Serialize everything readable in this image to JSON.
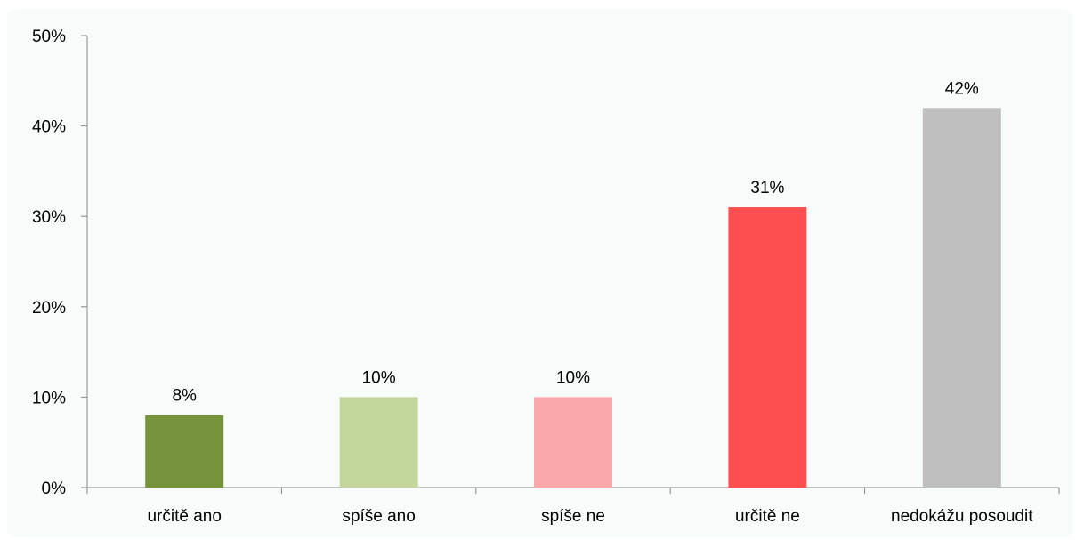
{
  "chart_data": {
    "type": "bar",
    "categories": [
      "určitě ano",
      "spíše ano",
      "spíše ne",
      "určitě ne",
      "nedokážu posoudit"
    ],
    "values": [
      8,
      10,
      10,
      31,
      42
    ],
    "data_labels": [
      "8%",
      "10%",
      "10%",
      "31%",
      "42%"
    ],
    "colors": [
      "#77933c",
      "#c3d69b",
      "#fba8aa",
      "#fe4f50",
      "#bfbfbf"
    ],
    "ylim": [
      0,
      50
    ],
    "yticks": [
      0,
      10,
      20,
      30,
      40,
      50
    ],
    "ytick_labels": [
      "0%",
      "10%",
      "20%",
      "30%",
      "40%",
      "50%"
    ],
    "grid": false,
    "legend": "none",
    "axis_color": "#878787"
  }
}
